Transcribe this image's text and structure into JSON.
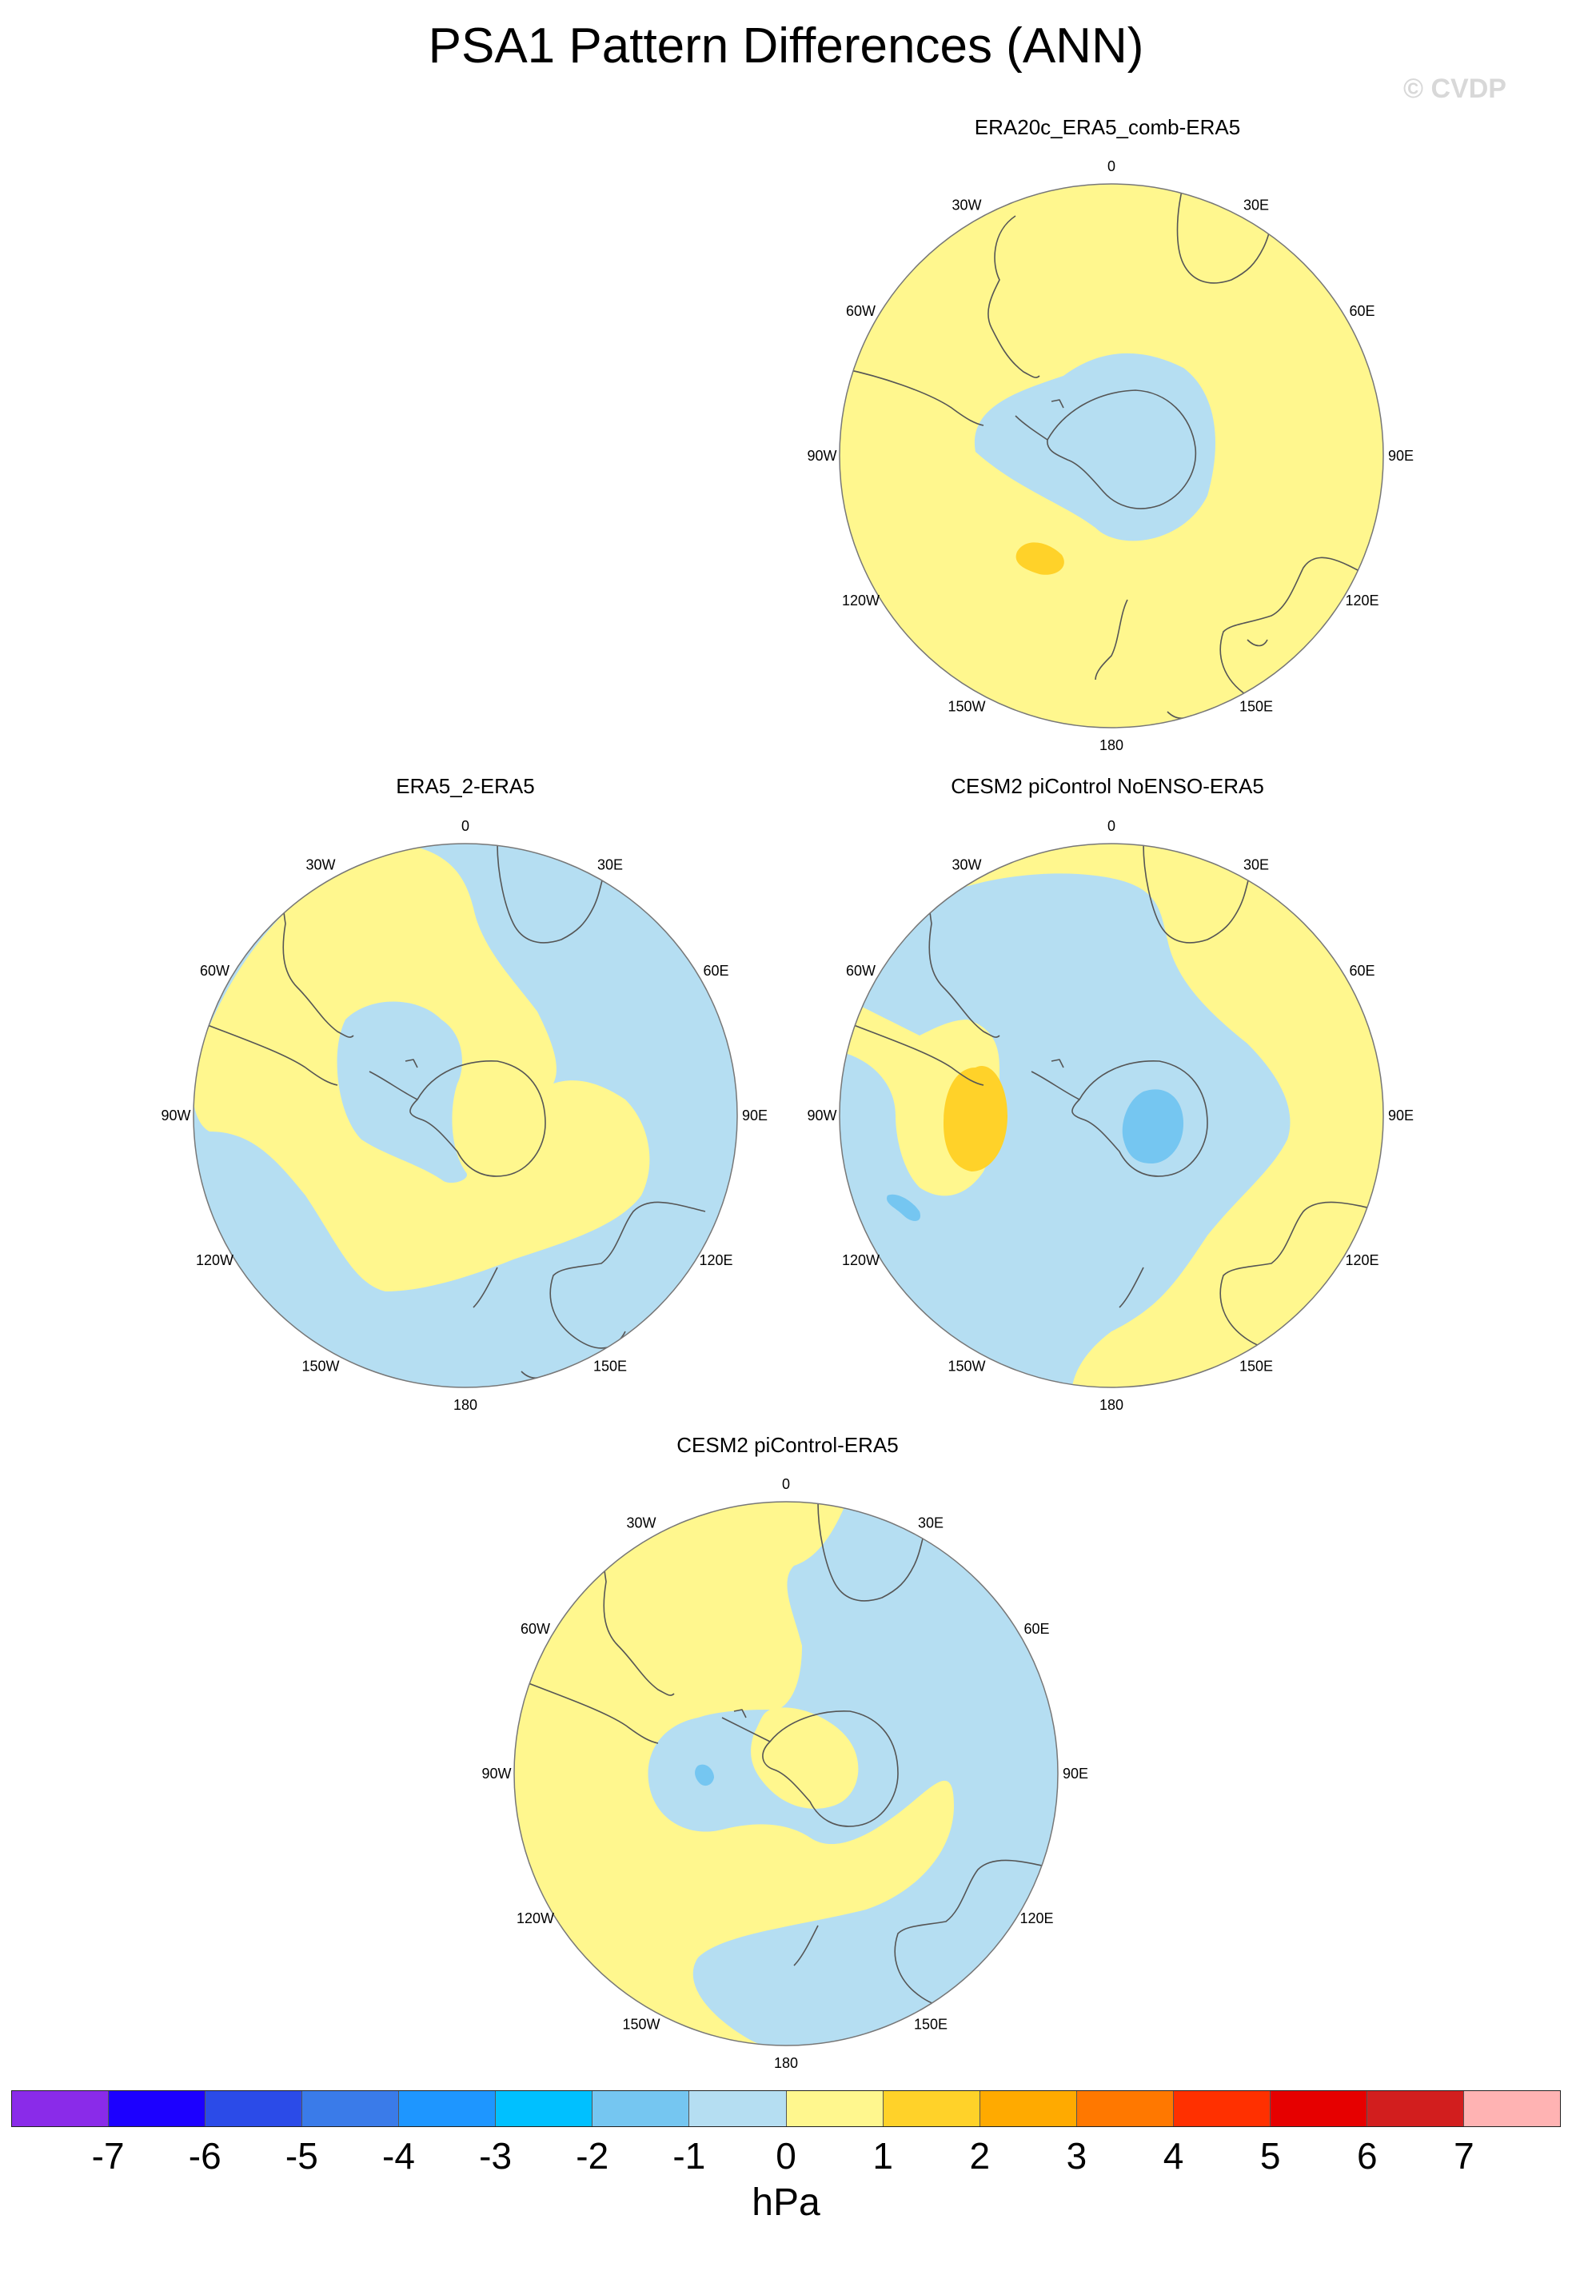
{
  "title": "PSA1 Pattern Differences (ANN)",
  "watermark": "© CVDP",
  "colors": {
    "neg1": "#b5def2",
    "neg2": "#75c6f1",
    "pos1": "#fff78e",
    "pos2": "#ffd229",
    "coast": "#555555"
  },
  "lon_labels": [
    "0",
    "30E",
    "60E",
    "90E",
    "120E",
    "150E",
    "180",
    "150W",
    "120W",
    "90W",
    "60W",
    "30W"
  ],
  "panels": [
    {
      "id": "p1",
      "title": "ERA20c_ERA5_comb-ERA5",
      "background": "pos1"
    },
    {
      "id": "p2",
      "title": "ERA5_2-ERA5",
      "background": "neg1"
    },
    {
      "id": "p3",
      "title": "CESM2 piControl NoENSO-ERA5",
      "background": "neg1"
    },
    {
      "id": "p4",
      "title": "CESM2 piControl-ERA5",
      "background": "pos1"
    }
  ],
  "colorbar": {
    "units": "hPa",
    "colors": [
      "#8a2be9",
      "#1c00ff",
      "#2b4be8",
      "#3a7be9",
      "#1e96ff",
      "#00c0ff",
      "#75c6f1",
      "#b5def2",
      "#fff78e",
      "#ffd229",
      "#ffaa00",
      "#ff7800",
      "#ff3000",
      "#e60000",
      "#d21e1e",
      "#ffb3b3"
    ],
    "tick_labels": [
      "-7",
      "-6",
      "-5",
      "-4",
      "-3",
      "-2",
      "-1",
      "0",
      "1",
      "2",
      "3",
      "4",
      "5",
      "6",
      "7"
    ]
  }
}
